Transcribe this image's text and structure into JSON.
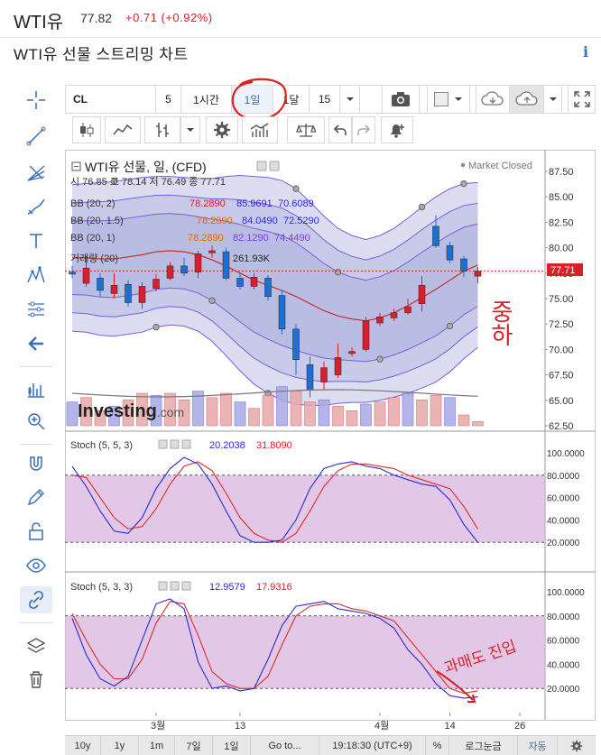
{
  "header": {
    "title": "WTI유",
    "price": "77.82",
    "change": "+0.71 (+0.92%)",
    "subtitle": "WTI유 선물 스트리밍 차트"
  },
  "toolbar": {
    "symbol": "CL",
    "intervals": [
      "5",
      "1시간",
      "1일",
      "1달",
      "15"
    ],
    "selected_interval": "1일"
  },
  "chart": {
    "title": "WTI유 선물, 일, (CFD)",
    "status": "Market Closed",
    "ohlc": "시 76.85  고 78.14  저 76.49  종 77.71",
    "bb1": {
      "label": "BB (20, 2)",
      "v1": "78.2890",
      "v2": "85.9691",
      "v3": "70.6089"
    },
    "bb2": {
      "label": "BB (20, 1.5)",
      "v1": "78.2890",
      "v2": "84.0490",
      "v3": "72.5290"
    },
    "bb3": {
      "label": "BB (20, 1)",
      "v1": "78.2890",
      "v2": "82.1290",
      "v3": "74.4490"
    },
    "volume": {
      "label": "거래량 (20)",
      "value": "261.93K"
    },
    "last_price": "77.71",
    "watermark": "Investing.com",
    "price_axis": [
      "87.50",
      "85.00",
      "82.50",
      "80.00",
      "77.50",
      "75.00",
      "72.50",
      "70.00",
      "67.50",
      "65.00",
      "62.50"
    ],
    "annotation_main": "중하",
    "stoch1": {
      "label": "Stoch (5, 5, 3)",
      "k": "20.2038",
      "d": "31.8090"
    },
    "stoch2": {
      "label": "Stoch (5, 3, 3)",
      "k": "12.9579",
      "d": "17.9316"
    },
    "stoch_axis": [
      "100.0000",
      "80.0000",
      "60.0000",
      "40.0000",
      "20.0000"
    ],
    "annotation_stoch": "과매도 진입",
    "x_labels": [
      "3월",
      "13",
      "4월",
      "14",
      "26"
    ]
  },
  "bottom": {
    "ranges": [
      "10y",
      "1y",
      "1m",
      "7일",
      "1일",
      "Go to..."
    ],
    "time": "19:18:30 (UTC+9)",
    "percent": "%",
    "log": "로그눈금",
    "auto": "자동"
  },
  "colors": {
    "up": "#d9202a",
    "down": "#1f6fd1",
    "bb_fill": "#9a9fd6",
    "bb_line": "#7a5fd9",
    "stoch_k": "#2a2ad8",
    "stoch_d": "#e02a2a",
    "stoch_band": "#d6b0dc",
    "accent": "#3a6fb5"
  }
}
